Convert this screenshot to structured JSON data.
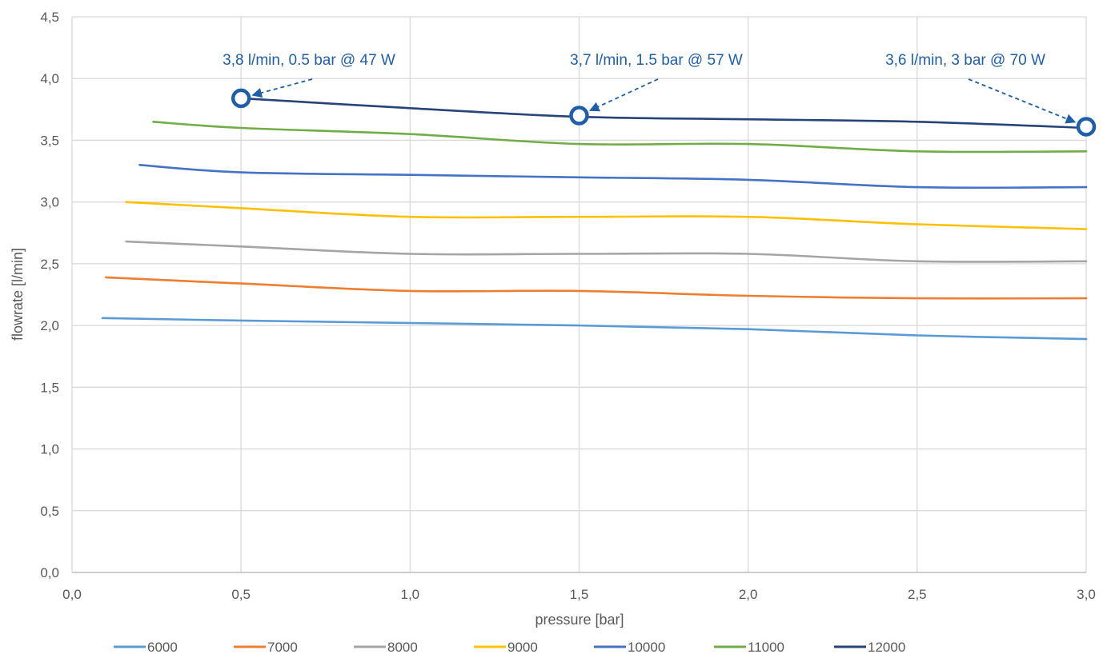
{
  "chart_data": {
    "type": "line",
    "title": "",
    "xlabel": "pressure [bar]",
    "ylabel": "flowrate [l/min]",
    "xlim": [
      0,
      3
    ],
    "ylim": [
      0,
      4.5
    ],
    "x_ticks": [
      "0,0",
      "0,5",
      "1,0",
      "1,5",
      "2,0",
      "2,5",
      "3,0"
    ],
    "y_ticks": [
      "0,0",
      "0,5",
      "1,0",
      "1,5",
      "2,0",
      "2,5",
      "3,0",
      "3,5",
      "4,0",
      "4,5"
    ],
    "grid": true,
    "legend_position": "bottom",
    "series": [
      {
        "name": "6000",
        "color": "#5B9BD5",
        "points": [
          [
            0.09,
            2.06
          ],
          [
            0.5,
            2.04
          ],
          [
            1.0,
            2.02
          ],
          [
            1.5,
            2.0
          ],
          [
            2.0,
            1.97
          ],
          [
            2.5,
            1.92
          ],
          [
            3.0,
            1.89
          ]
        ]
      },
      {
        "name": "7000",
        "color": "#ED7D31",
        "points": [
          [
            0.1,
            2.39
          ],
          [
            0.5,
            2.34
          ],
          [
            1.0,
            2.28
          ],
          [
            1.5,
            2.28
          ],
          [
            2.0,
            2.24
          ],
          [
            2.5,
            2.22
          ],
          [
            3.0,
            2.22
          ]
        ]
      },
      {
        "name": "8000",
        "color": "#A5A5A5",
        "points": [
          [
            0.16,
            2.68
          ],
          [
            0.5,
            2.64
          ],
          [
            1.0,
            2.58
          ],
          [
            1.5,
            2.58
          ],
          [
            2.0,
            2.58
          ],
          [
            2.5,
            2.52
          ],
          [
            3.0,
            2.52
          ]
        ]
      },
      {
        "name": "9000",
        "color": "#FFC000",
        "points": [
          [
            0.16,
            3.0
          ],
          [
            0.5,
            2.95
          ],
          [
            1.0,
            2.88
          ],
          [
            1.5,
            2.88
          ],
          [
            2.0,
            2.88
          ],
          [
            2.5,
            2.82
          ],
          [
            3.0,
            2.78
          ]
        ]
      },
      {
        "name": "10000",
        "color": "#4472C4",
        "points": [
          [
            0.2,
            3.3
          ],
          [
            0.5,
            3.24
          ],
          [
            1.0,
            3.22
          ],
          [
            1.5,
            3.2
          ],
          [
            2.0,
            3.18
          ],
          [
            2.5,
            3.12
          ],
          [
            3.0,
            3.12
          ]
        ]
      },
      {
        "name": "11000",
        "color": "#70AD47",
        "points": [
          [
            0.24,
            3.65
          ],
          [
            0.5,
            3.6
          ],
          [
            1.0,
            3.55
          ],
          [
            1.5,
            3.47
          ],
          [
            2.0,
            3.47
          ],
          [
            2.5,
            3.41
          ],
          [
            3.0,
            3.41
          ]
        ]
      },
      {
        "name": "12000",
        "color": "#264478",
        "points": [
          [
            0.5,
            3.84
          ],
          [
            1.0,
            3.76
          ],
          [
            1.5,
            3.69
          ],
          [
            2.0,
            3.67
          ],
          [
            2.5,
            3.65
          ],
          [
            3.0,
            3.6
          ]
        ]
      }
    ],
    "annotations": [
      {
        "text": "3,8 l/min, 0.5 bar @ 47 W",
        "x": 0.5,
        "y": 3.84
      },
      {
        "text": "3,7 l/min, 1.5 bar @ 57 W",
        "x": 1.5,
        "y": 3.7
      },
      {
        "text": "3,6 l/min, 3 bar @ 70 W",
        "x": 3.0,
        "y": 3.61
      }
    ],
    "marker_color": "#1F5FA8"
  }
}
